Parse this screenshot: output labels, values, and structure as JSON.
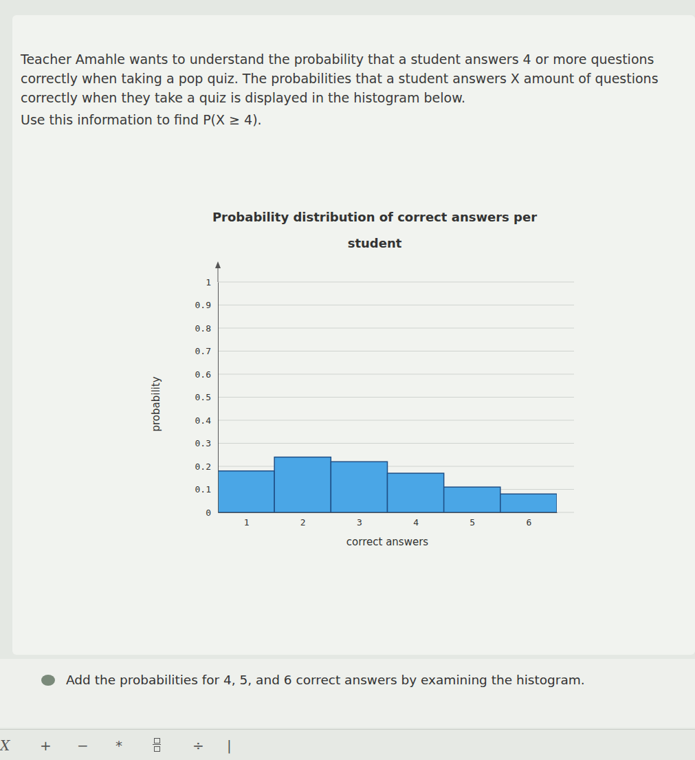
{
  "chart_data": {
    "type": "histogram",
    "title": "Probability distribution of correct answers per student",
    "x_label": "correct answers",
    "y_label": "probability",
    "bins": [
      0.5,
      1.5,
      2.5,
      3.5,
      4.5,
      5.5,
      6.5
    ],
    "values": [
      0.18,
      0.24,
      0.22,
      0.17,
      0.11,
      0.08
    ],
    "color": "#4aa6e6",
    "xlim": [
      0.5,
      6.5
    ],
    "xticks": [
      1,
      2,
      3,
      4,
      5,
      6
    ],
    "ylim": [
      0,
      1
    ],
    "yticks": [
      0,
      0.1,
      0.2,
      0.3,
      0.4,
      0.5,
      0.6,
      0.7,
      0.8,
      0.9,
      1
    ],
    "grid": true
  },
  "page": {
    "prompt": "Teacher Amahle wants to understand the probability that a student answers 4 or more questions correctly when taking a pop quiz. The probabilities that a student answers X amount of questions correctly when they take a quiz is displayed in the histogram below.",
    "instruction": "Use this information to find P(X ≥ 4).",
    "hint": "Add the probabilities for 4, 5, and 6 correct answers by examining the histogram.",
    "toolbar": [
      "X",
      "+",
      "−",
      "*",
      "÷",
      "|"
    ]
  }
}
